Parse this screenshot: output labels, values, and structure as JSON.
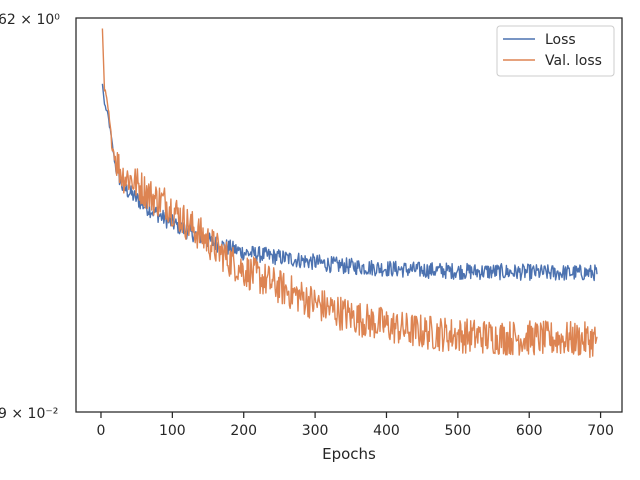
{
  "chart_data": {
    "type": "line",
    "title": "",
    "xlabel": "Epochs",
    "ylabel": "",
    "xlim": [
      -35,
      730
    ],
    "ylim": [
      0.09,
      1.62
    ],
    "yscale": "log",
    "grid": false,
    "legend_position": "top-right",
    "x_ticks": [
      0,
      100,
      200,
      300,
      400,
      500,
      600,
      700
    ],
    "x_tick_labels": [
      "0",
      "100",
      "200",
      "300",
      "400",
      "500",
      "600",
      "700"
    ],
    "y_tick_labels": [
      "62 × 10⁰",
      "9 × 10⁻²"
    ],
    "series": [
      {
        "name": "Loss",
        "color": "#4c72b0",
        "x": [
          2,
          5,
          10,
          15,
          20,
          30,
          40,
          50,
          60,
          75,
          90,
          100,
          120,
          140,
          160,
          180,
          200,
          225,
          250,
          275,
          300,
          325,
          350,
          375,
          400,
          425,
          450,
          475,
          500,
          525,
          550,
          575,
          600,
          625,
          650,
          675,
          695
        ],
        "y": [
          1.0,
          0.86,
          0.79,
          0.66,
          0.55,
          0.47,
          0.45,
          0.43,
          0.41,
          0.39,
          0.37,
          0.36,
          0.34,
          0.325,
          0.31,
          0.3,
          0.29,
          0.285,
          0.28,
          0.275,
          0.27,
          0.265,
          0.262,
          0.26,
          0.258,
          0.256,
          0.255,
          0.254,
          0.253,
          0.252,
          0.252,
          0.251,
          0.251,
          0.25,
          0.25,
          0.25,
          0.25
        ],
        "noise": 0.06
      },
      {
        "name": "Val. loss",
        "color": "#dd8452",
        "x": [
          2,
          5,
          10,
          15,
          20,
          30,
          40,
          50,
          60,
          75,
          90,
          100,
          120,
          140,
          160,
          180,
          200,
          225,
          250,
          275,
          300,
          325,
          350,
          375,
          400,
          425,
          450,
          475,
          500,
          525,
          550,
          575,
          600,
          625,
          650,
          675,
          695
        ],
        "y": [
          1.5,
          0.95,
          0.83,
          0.65,
          0.58,
          0.51,
          0.5,
          0.48,
          0.46,
          0.43,
          0.42,
          0.4,
          0.36,
          0.33,
          0.3,
          0.275,
          0.255,
          0.24,
          0.225,
          0.212,
          0.2,
          0.19,
          0.182,
          0.175,
          0.17,
          0.165,
          0.162,
          0.16,
          0.158,
          0.157,
          0.156,
          0.155,
          0.155,
          0.154,
          0.154,
          0.153,
          0.153
        ],
        "noise": 0.13
      }
    ]
  }
}
